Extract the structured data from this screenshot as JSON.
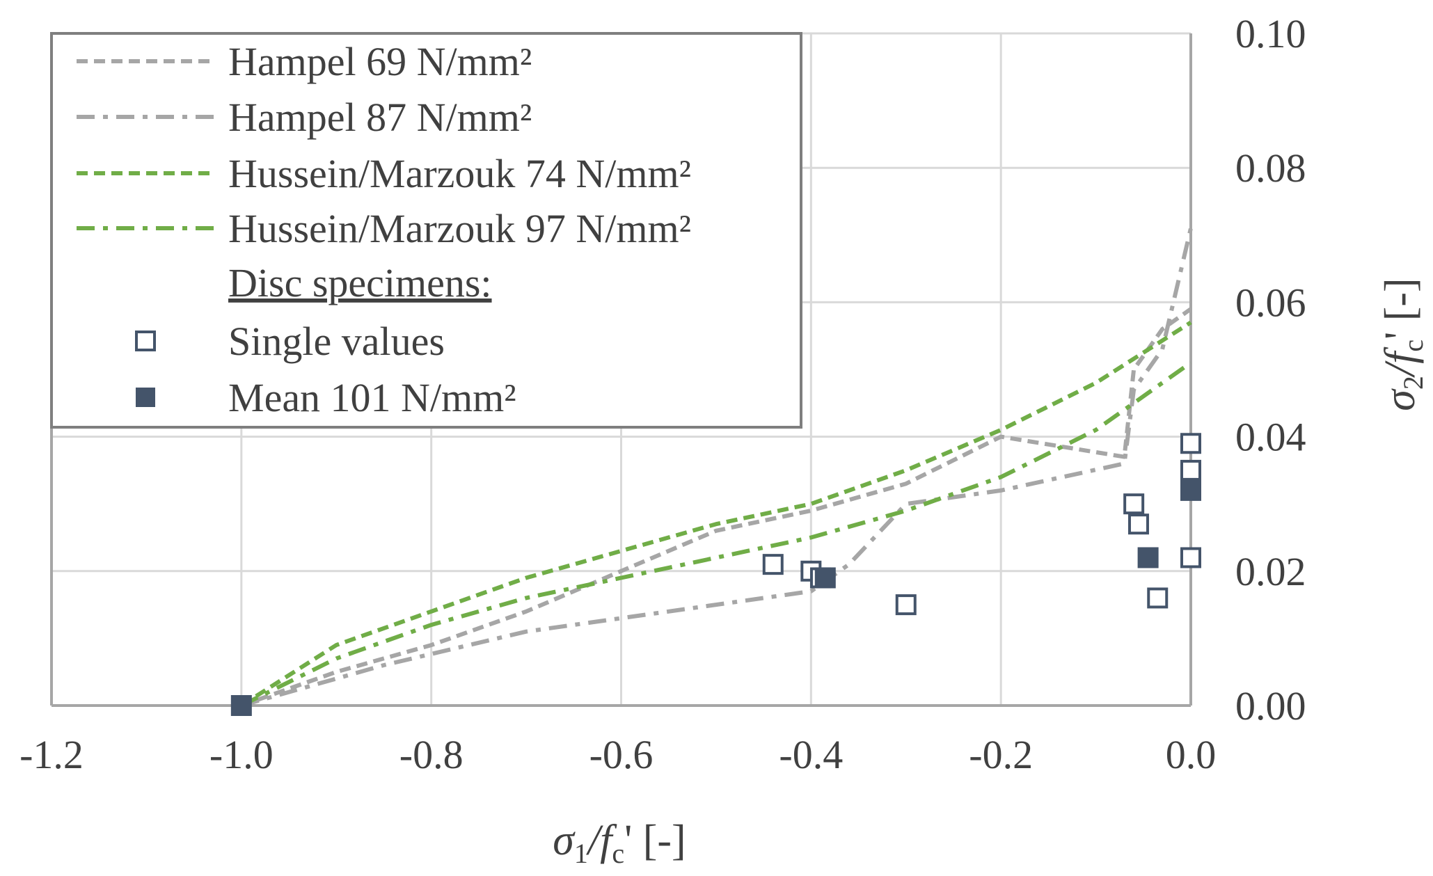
{
  "chart_data": {
    "type": "line+scatter",
    "title": "",
    "xlabel": {
      "main": "σ",
      "sub": "1",
      "mid": "/f",
      "subc": "c",
      "tail": "' [-]"
    },
    "ylabel": {
      "main": "σ",
      "sub": "2",
      "mid": "/f",
      "subc": "c",
      "tail": "' [-]"
    },
    "xlim": [
      -1.2,
      0.0
    ],
    "ylim": [
      0.0,
      0.1
    ],
    "xticks": [
      {
        "v": -1.2,
        "label": "-1.2"
      },
      {
        "v": -1.0,
        "label": "-1.0"
      },
      {
        "v": -0.8,
        "label": "-0.8"
      },
      {
        "v": -0.6,
        "label": "-0.6"
      },
      {
        "v": -0.4,
        "label": "-0.4"
      },
      {
        "v": -0.2,
        "label": "-0.2"
      },
      {
        "v": 0.0,
        "label": "0.0"
      }
    ],
    "yticks": [
      {
        "v": 0.0,
        "label": "0.00"
      },
      {
        "v": 0.02,
        "label": "0.02"
      },
      {
        "v": 0.04,
        "label": "0.04"
      },
      {
        "v": 0.06,
        "label": "0.06"
      },
      {
        "v": 0.08,
        "label": "0.08"
      },
      {
        "v": 0.1,
        "label": "0.10"
      }
    ],
    "grid": true,
    "y_axis_side": "right",
    "legend_position": "top-left",
    "colors": {
      "hampel": "#a6a6a6",
      "hussein": "#70ad47",
      "markers": "#44546a",
      "grid": "#d9d9d9",
      "axis": "#a6a6a6",
      "text": "#404040"
    },
    "series": [
      {
        "name": "Hampel 69 N/mm²",
        "style": "dashed",
        "color": "#a6a6a6",
        "points": [
          [
            -1.0,
            0.0
          ],
          [
            -0.9,
            0.005
          ],
          [
            -0.8,
            0.009
          ],
          [
            -0.7,
            0.014
          ],
          [
            -0.6,
            0.02
          ],
          [
            -0.5,
            0.026
          ],
          [
            -0.4,
            0.029
          ],
          [
            -0.3,
            0.033
          ],
          [
            -0.2,
            0.04
          ],
          [
            -0.07,
            0.037
          ],
          [
            -0.06,
            0.05
          ],
          [
            -0.03,
            0.056
          ],
          [
            0.0,
            0.059
          ]
        ]
      },
      {
        "name": "Hampel 87 N/mm²",
        "style": "dashdot",
        "color": "#a6a6a6",
        "points": [
          [
            -1.0,
            0.0
          ],
          [
            -0.85,
            0.006
          ],
          [
            -0.7,
            0.011
          ],
          [
            -0.55,
            0.014
          ],
          [
            -0.4,
            0.017
          ],
          [
            -0.36,
            0.021
          ],
          [
            -0.3,
            0.03
          ],
          [
            -0.2,
            0.032
          ],
          [
            -0.07,
            0.036
          ],
          [
            -0.06,
            0.047
          ],
          [
            -0.03,
            0.053
          ],
          [
            0.0,
            0.071
          ]
        ]
      },
      {
        "name": "Hussein/Marzouk 74 N/mm²",
        "style": "dashed",
        "color": "#70ad47",
        "points": [
          [
            -1.0,
            0.0
          ],
          [
            -0.9,
            0.009
          ],
          [
            -0.8,
            0.014
          ],
          [
            -0.7,
            0.019
          ],
          [
            -0.6,
            0.023
          ],
          [
            -0.5,
            0.027
          ],
          [
            -0.4,
            0.03
          ],
          [
            -0.3,
            0.035
          ],
          [
            -0.2,
            0.041
          ],
          [
            -0.1,
            0.048
          ],
          [
            0.0,
            0.057
          ]
        ]
      },
      {
        "name": "Hussein/Marzouk 97 N/mm²",
        "style": "dashdot",
        "color": "#70ad47",
        "points": [
          [
            -1.0,
            0.0
          ],
          [
            -0.9,
            0.007
          ],
          [
            -0.8,
            0.012
          ],
          [
            -0.7,
            0.016
          ],
          [
            -0.6,
            0.019
          ],
          [
            -0.5,
            0.022
          ],
          [
            -0.4,
            0.025
          ],
          [
            -0.3,
            0.029
          ],
          [
            -0.2,
            0.034
          ],
          [
            -0.1,
            0.041
          ],
          [
            0.0,
            0.051
          ]
        ]
      },
      {
        "name": "Single values",
        "style": "marker-open",
        "color": "#44546a",
        "points": [
          [
            -0.44,
            0.021
          ],
          [
            -0.4,
            0.02
          ],
          [
            -0.39,
            0.019
          ],
          [
            -0.3,
            0.015
          ],
          [
            -0.06,
            0.03
          ],
          [
            -0.055,
            0.027
          ],
          [
            -0.035,
            0.016
          ],
          [
            0.0,
            0.039
          ],
          [
            0.0,
            0.035
          ],
          [
            0.0,
            0.022
          ]
        ]
      },
      {
        "name": "Mean 101 N/mm²",
        "style": "marker-filled",
        "color": "#44546a",
        "points": [
          [
            -1.0,
            0.0
          ],
          [
            -0.385,
            0.019
          ],
          [
            -0.045,
            0.022
          ],
          [
            0.0,
            0.032
          ]
        ]
      }
    ],
    "legend": {
      "entries": [
        {
          "label": "Hampel 69 N/mm²",
          "style": "dashed",
          "color": "#a6a6a6"
        },
        {
          "label": "Hampel 87 N/mm²",
          "style": "dashdot",
          "color": "#a6a6a6"
        },
        {
          "label": "Hussein/Marzouk 74 N/mm²",
          "style": "dashed",
          "color": "#70ad47"
        },
        {
          "label": "Hussein/Marzouk 97 N/mm²",
          "style": "dashdot",
          "color": "#70ad47"
        },
        {
          "label": "Disc specimens:",
          "style": "heading",
          "color": "#404040"
        },
        {
          "label": "Single values",
          "style": "marker-open",
          "color": "#44546a"
        },
        {
          "label": "Mean 101 N/mm²",
          "style": "marker-filled",
          "color": "#44546a"
        }
      ]
    }
  }
}
